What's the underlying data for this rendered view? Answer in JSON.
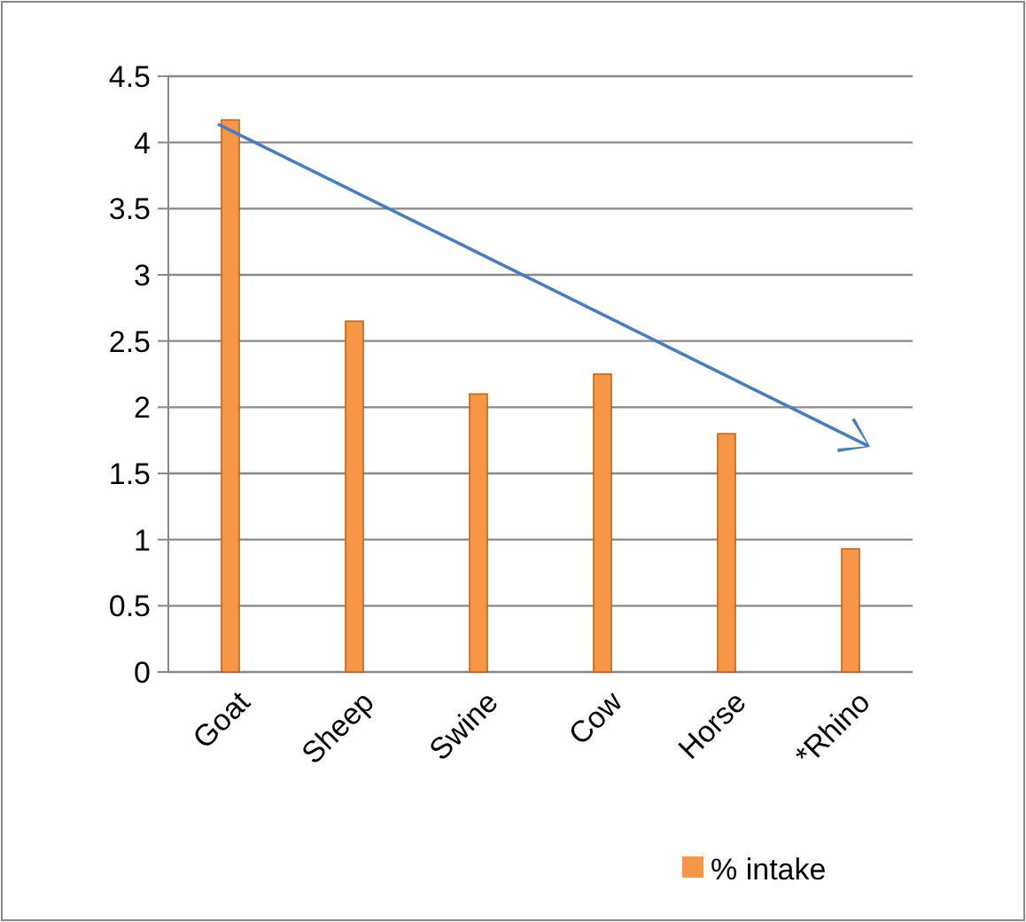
{
  "chart_data": {
    "type": "bar",
    "categories": [
      "Goat",
      "Sheep",
      "Swine",
      "Cow",
      "Horse",
      "*Rhino"
    ],
    "series": [
      {
        "name": "% intake",
        "color": "#f79646",
        "values": [
          4.17,
          2.65,
          2.1,
          2.25,
          1.8,
          0.93
        ]
      }
    ],
    "ylim": [
      0,
      4.5
    ],
    "yticks": [
      0,
      0.5,
      1,
      1.5,
      2,
      2.5,
      3,
      3.5,
      4,
      4.5
    ],
    "grid": "y",
    "legend": "bottom right"
  }
}
